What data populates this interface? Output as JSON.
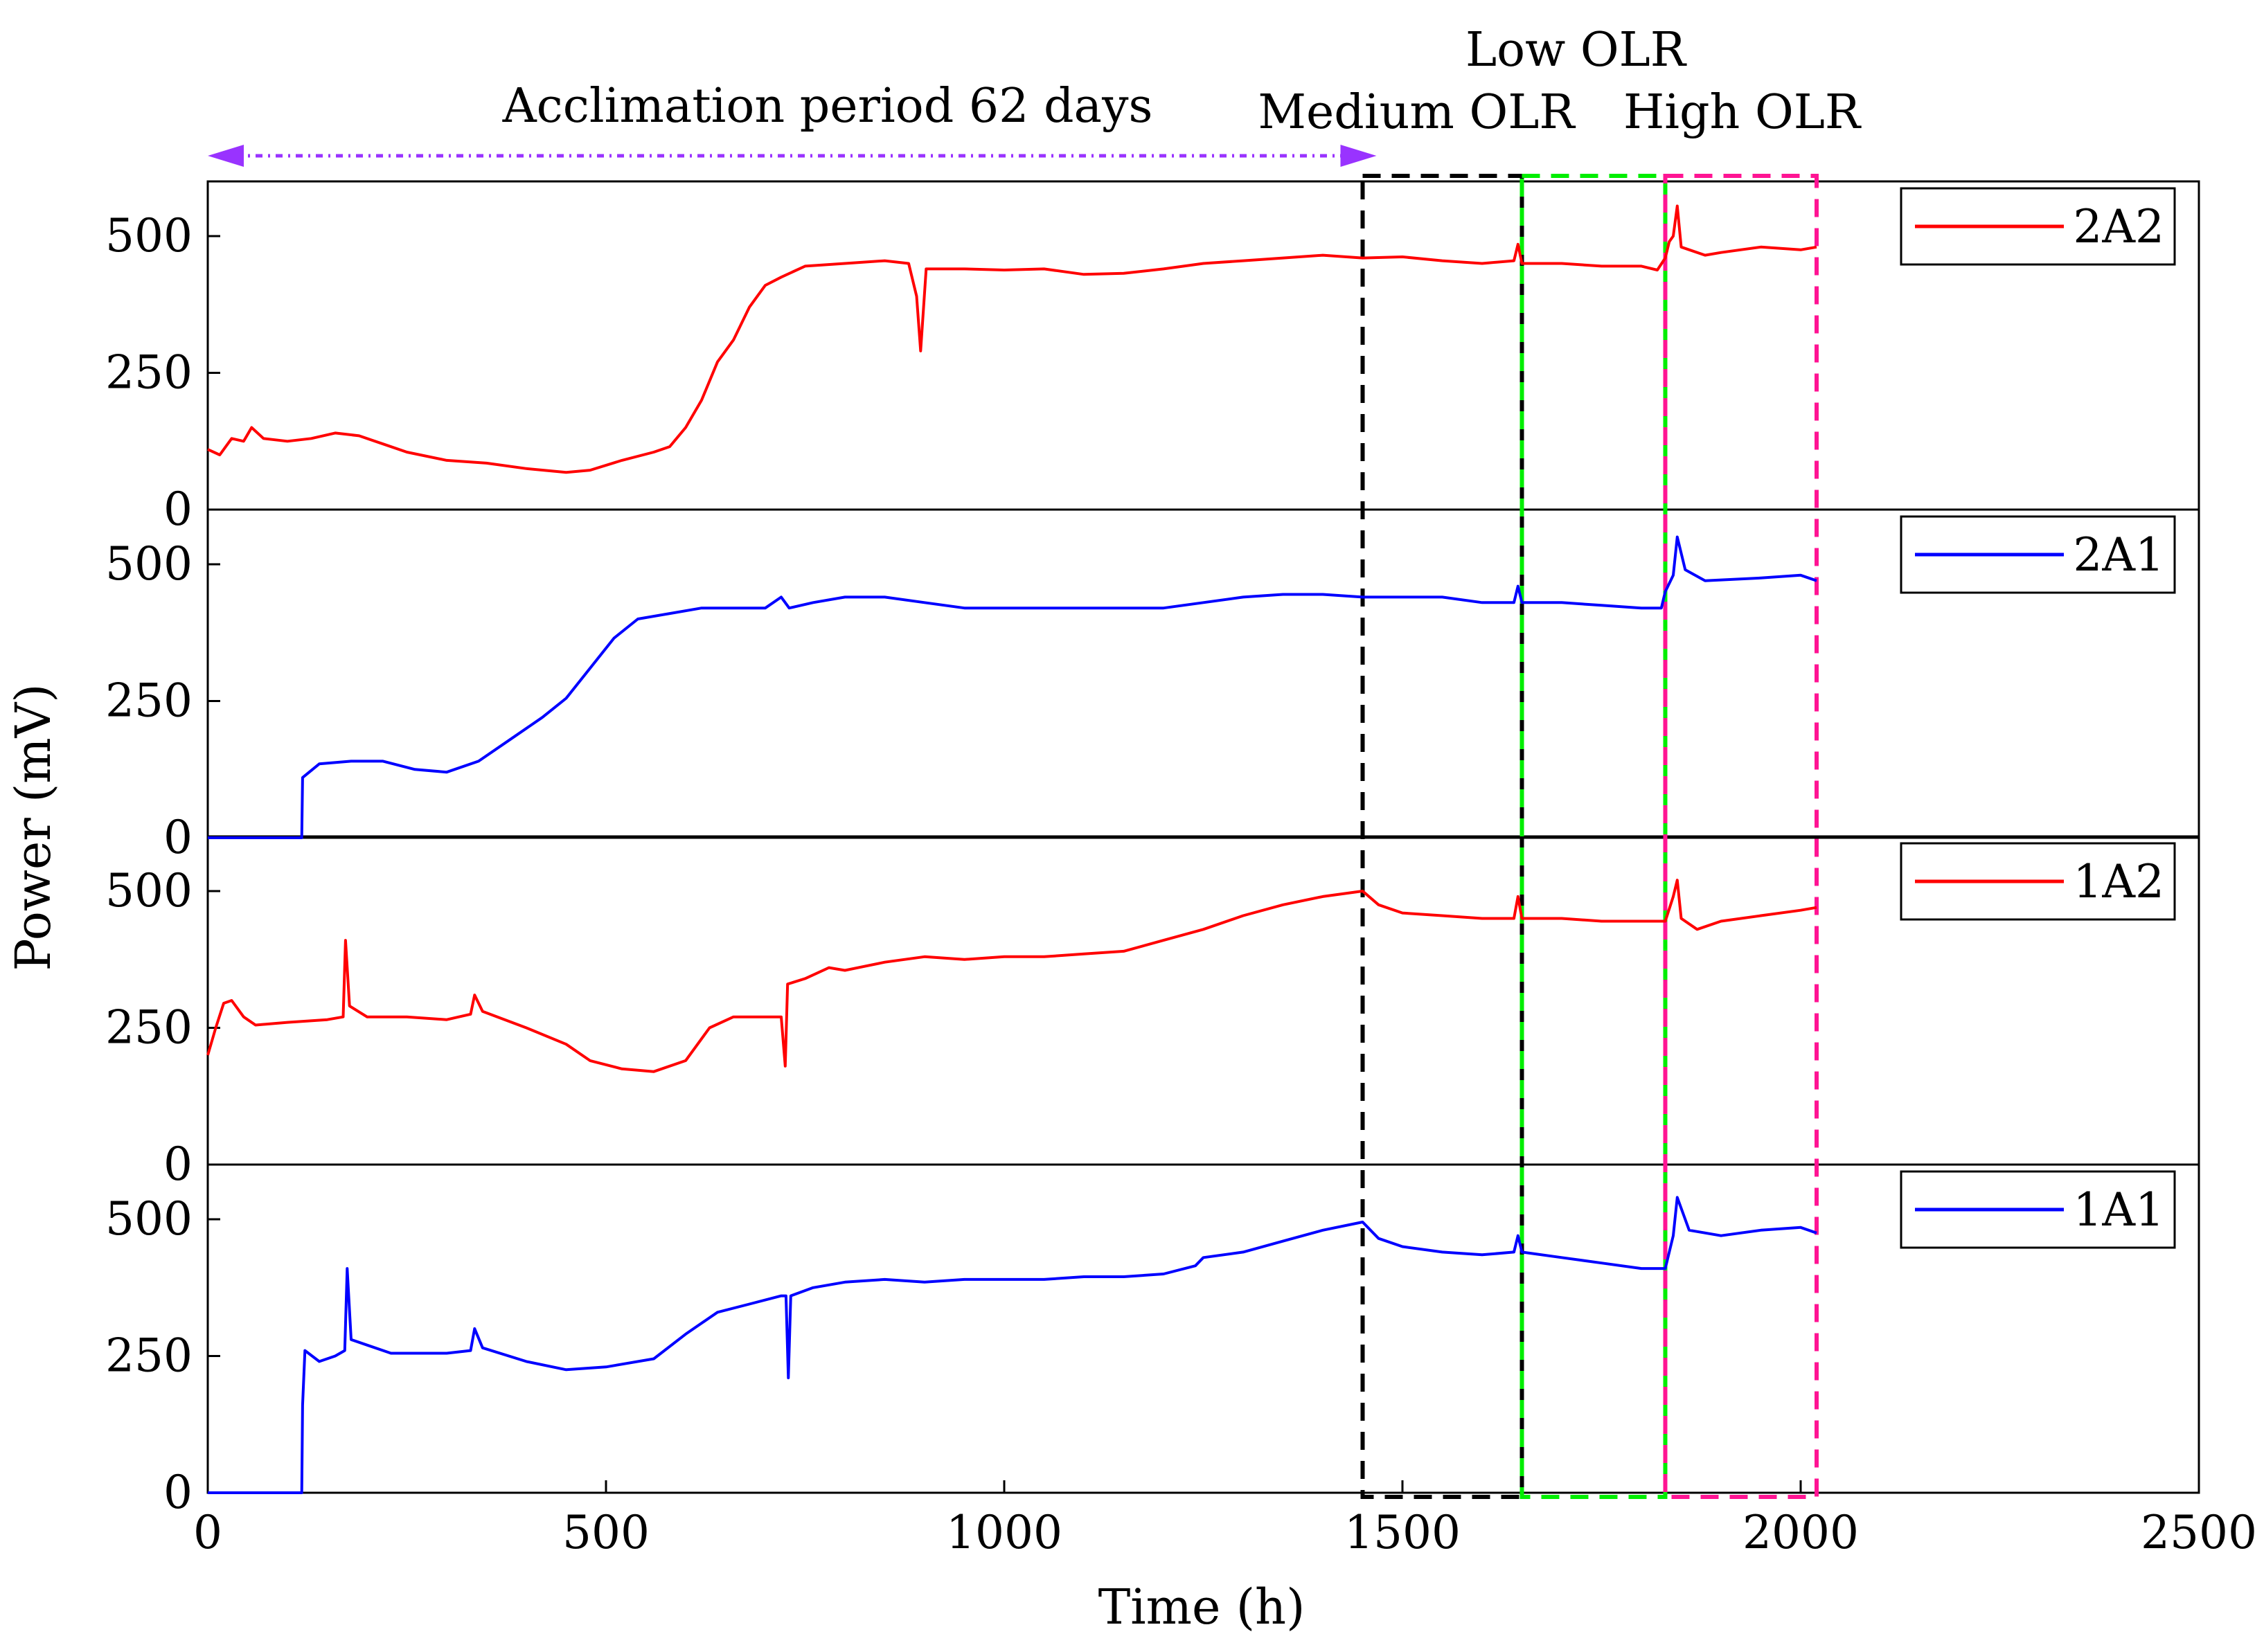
{
  "chart_data": {
    "type": "line",
    "xlabel": "Time (h)",
    "ylabel": "Power (mV)",
    "xlim": [
      0,
      2500
    ],
    "ylim": [
      0,
      600
    ],
    "x_ticks": [
      "0",
      "500",
      "1000",
      "1500",
      "2000",
      "2500"
    ],
    "y_ticks": [
      "0",
      "250",
      "500"
    ],
    "series": [
      {
        "name": "2A2",
        "color": "#ff0000",
        "points": [
          [
            0,
            110
          ],
          [
            15,
            100
          ],
          [
            30,
            130
          ],
          [
            45,
            125
          ],
          [
            55,
            150
          ],
          [
            70,
            130
          ],
          [
            100,
            125
          ],
          [
            130,
            130
          ],
          [
            160,
            140
          ],
          [
            190,
            135
          ],
          [
            220,
            120
          ],
          [
            250,
            105
          ],
          [
            300,
            90
          ],
          [
            350,
            85
          ],
          [
            400,
            75
          ],
          [
            450,
            68
          ],
          [
            480,
            72
          ],
          [
            520,
            90
          ],
          [
            560,
            105
          ],
          [
            580,
            115
          ],
          [
            600,
            150
          ],
          [
            620,
            200
          ],
          [
            640,
            270
          ],
          [
            660,
            310
          ],
          [
            680,
            370
          ],
          [
            700,
            410
          ],
          [
            720,
            425
          ],
          [
            750,
            445
          ],
          [
            800,
            450
          ],
          [
            850,
            455
          ],
          [
            880,
            450
          ],
          [
            890,
            390
          ],
          [
            895,
            290
          ],
          [
            902,
            440
          ],
          [
            950,
            440
          ],
          [
            1000,
            438
          ],
          [
            1050,
            440
          ],
          [
            1100,
            430
          ],
          [
            1150,
            432
          ],
          [
            1200,
            440
          ],
          [
            1250,
            450
          ],
          [
            1300,
            455
          ],
          [
            1350,
            460
          ],
          [
            1400,
            465
          ],
          [
            1450,
            460
          ],
          [
            1500,
            462
          ],
          [
            1550,
            455
          ],
          [
            1600,
            450
          ],
          [
            1640,
            455
          ],
          [
            1645,
            485
          ],
          [
            1650,
            450
          ],
          [
            1700,
            450
          ],
          [
            1750,
            445
          ],
          [
            1800,
            445
          ],
          [
            1820,
            438
          ],
          [
            1830,
            460
          ],
          [
            1835,
            490
          ],
          [
            1840,
            500
          ],
          [
            1845,
            555
          ],
          [
            1850,
            480
          ],
          [
            1880,
            465
          ],
          [
            1900,
            470
          ],
          [
            1950,
            480
          ],
          [
            2000,
            475
          ],
          [
            2020,
            480
          ]
        ]
      },
      {
        "name": "2A1",
        "color": "#0000ff",
        "points": [
          [
            0,
            0
          ],
          [
            118,
            0
          ],
          [
            119,
            110
          ],
          [
            140,
            135
          ],
          [
            180,
            140
          ],
          [
            220,
            140
          ],
          [
            260,
            125
          ],
          [
            300,
            120
          ],
          [
            340,
            140
          ],
          [
            380,
            180
          ],
          [
            420,
            220
          ],
          [
            450,
            255
          ],
          [
            480,
            310
          ],
          [
            510,
            365
          ],
          [
            540,
            400
          ],
          [
            580,
            410
          ],
          [
            620,
            420
          ],
          [
            660,
            420
          ],
          [
            700,
            420
          ],
          [
            720,
            440
          ],
          [
            730,
            420
          ],
          [
            760,
            430
          ],
          [
            800,
            440
          ],
          [
            850,
            440
          ],
          [
            900,
            430
          ],
          [
            950,
            420
          ],
          [
            1000,
            420
          ],
          [
            1050,
            420
          ],
          [
            1100,
            420
          ],
          [
            1150,
            420
          ],
          [
            1200,
            420
          ],
          [
            1250,
            430
          ],
          [
            1300,
            440
          ],
          [
            1350,
            445
          ],
          [
            1400,
            445
          ],
          [
            1450,
            440
          ],
          [
            1500,
            440
          ],
          [
            1550,
            440
          ],
          [
            1600,
            430
          ],
          [
            1640,
            430
          ],
          [
            1645,
            460
          ],
          [
            1650,
            430
          ],
          [
            1700,
            430
          ],
          [
            1750,
            425
          ],
          [
            1800,
            420
          ],
          [
            1825,
            420
          ],
          [
            1830,
            450
          ],
          [
            1840,
            480
          ],
          [
            1845,
            550
          ],
          [
            1855,
            490
          ],
          [
            1880,
            470
          ],
          [
            1950,
            475
          ],
          [
            2000,
            480
          ],
          [
            2020,
            470
          ]
        ]
      },
      {
        "name": "1A2",
        "color": "#ff0000",
        "points": [
          [
            0,
            200
          ],
          [
            10,
            250
          ],
          [
            20,
            295
          ],
          [
            30,
            300
          ],
          [
            45,
            270
          ],
          [
            60,
            255
          ],
          [
            100,
            260
          ],
          [
            150,
            265
          ],
          [
            170,
            270
          ],
          [
            173,
            410
          ],
          [
            178,
            290
          ],
          [
            200,
            270
          ],
          [
            250,
            270
          ],
          [
            300,
            265
          ],
          [
            330,
            275
          ],
          [
            335,
            310
          ],
          [
            345,
            280
          ],
          [
            400,
            250
          ],
          [
            450,
            220
          ],
          [
            480,
            190
          ],
          [
            520,
            175
          ],
          [
            560,
            170
          ],
          [
            600,
            190
          ],
          [
            630,
            250
          ],
          [
            660,
            270
          ],
          [
            680,
            270
          ],
          [
            720,
            270
          ],
          [
            725,
            180
          ],
          [
            728,
            330
          ],
          [
            750,
            340
          ],
          [
            780,
            360
          ],
          [
            800,
            355
          ],
          [
            850,
            370
          ],
          [
            900,
            380
          ],
          [
            950,
            375
          ],
          [
            1000,
            380
          ],
          [
            1050,
            380
          ],
          [
            1100,
            385
          ],
          [
            1150,
            390
          ],
          [
            1200,
            410
          ],
          [
            1250,
            430
          ],
          [
            1300,
            455
          ],
          [
            1350,
            475
          ],
          [
            1400,
            490
          ],
          [
            1450,
            500
          ],
          [
            1470,
            475
          ],
          [
            1500,
            460
          ],
          [
            1550,
            455
          ],
          [
            1600,
            450
          ],
          [
            1640,
            450
          ],
          [
            1645,
            490
          ],
          [
            1650,
            450
          ],
          [
            1700,
            450
          ],
          [
            1750,
            445
          ],
          [
            1800,
            445
          ],
          [
            1830,
            445
          ],
          [
            1840,
            490
          ],
          [
            1845,
            520
          ],
          [
            1850,
            450
          ],
          [
            1870,
            430
          ],
          [
            1900,
            445
          ],
          [
            1950,
            455
          ],
          [
            2000,
            465
          ],
          [
            2020,
            470
          ]
        ]
      },
      {
        "name": "1A1",
        "color": "#0000ff",
        "points": [
          [
            0,
            0
          ],
          [
            118,
            0
          ],
          [
            119,
            160
          ],
          [
            122,
            260
          ],
          [
            140,
            240
          ],
          [
            160,
            250
          ],
          [
            172,
            260
          ],
          [
            175,
            410
          ],
          [
            180,
            280
          ],
          [
            200,
            270
          ],
          [
            230,
            255
          ],
          [
            300,
            255
          ],
          [
            330,
            260
          ],
          [
            335,
            300
          ],
          [
            345,
            265
          ],
          [
            400,
            240
          ],
          [
            450,
            225
          ],
          [
            500,
            230
          ],
          [
            560,
            245
          ],
          [
            600,
            290
          ],
          [
            640,
            330
          ],
          [
            680,
            345
          ],
          [
            720,
            360
          ],
          [
            726,
            360
          ],
          [
            729,
            210
          ],
          [
            732,
            360
          ],
          [
            760,
            375
          ],
          [
            800,
            385
          ],
          [
            850,
            390
          ],
          [
            900,
            385
          ],
          [
            950,
            390
          ],
          [
            1000,
            390
          ],
          [
            1050,
            390
          ],
          [
            1100,
            395
          ],
          [
            1150,
            395
          ],
          [
            1200,
            400
          ],
          [
            1240,
            415
          ],
          [
            1250,
            430
          ],
          [
            1300,
            440
          ],
          [
            1350,
            460
          ],
          [
            1400,
            480
          ],
          [
            1450,
            495
          ],
          [
            1470,
            465
          ],
          [
            1500,
            450
          ],
          [
            1550,
            440
          ],
          [
            1600,
            435
          ],
          [
            1640,
            440
          ],
          [
            1645,
            470
          ],
          [
            1650,
            440
          ],
          [
            1700,
            430
          ],
          [
            1750,
            420
          ],
          [
            1800,
            410
          ],
          [
            1830,
            410
          ],
          [
            1840,
            470
          ],
          [
            1845,
            540
          ],
          [
            1860,
            480
          ],
          [
            1900,
            470
          ],
          [
            1950,
            480
          ],
          [
            2000,
            485
          ],
          [
            2020,
            475
          ]
        ]
      }
    ],
    "annotations": {
      "acclimation": "Acclimation period 62 days",
      "acclimation_range": [
        0,
        1450
      ],
      "phases": [
        {
          "label": "Medium OLR",
          "range": [
            1450,
            1650
          ],
          "color": "#000000"
        },
        {
          "label": "Low OLR",
          "range": [
            1650,
            1830
          ],
          "color": "#00ee00"
        },
        {
          "label": "High OLR",
          "range": [
            1830,
            2020
          ],
          "color": "#ff1493"
        }
      ],
      "arrow_color": "#9933ff"
    }
  }
}
